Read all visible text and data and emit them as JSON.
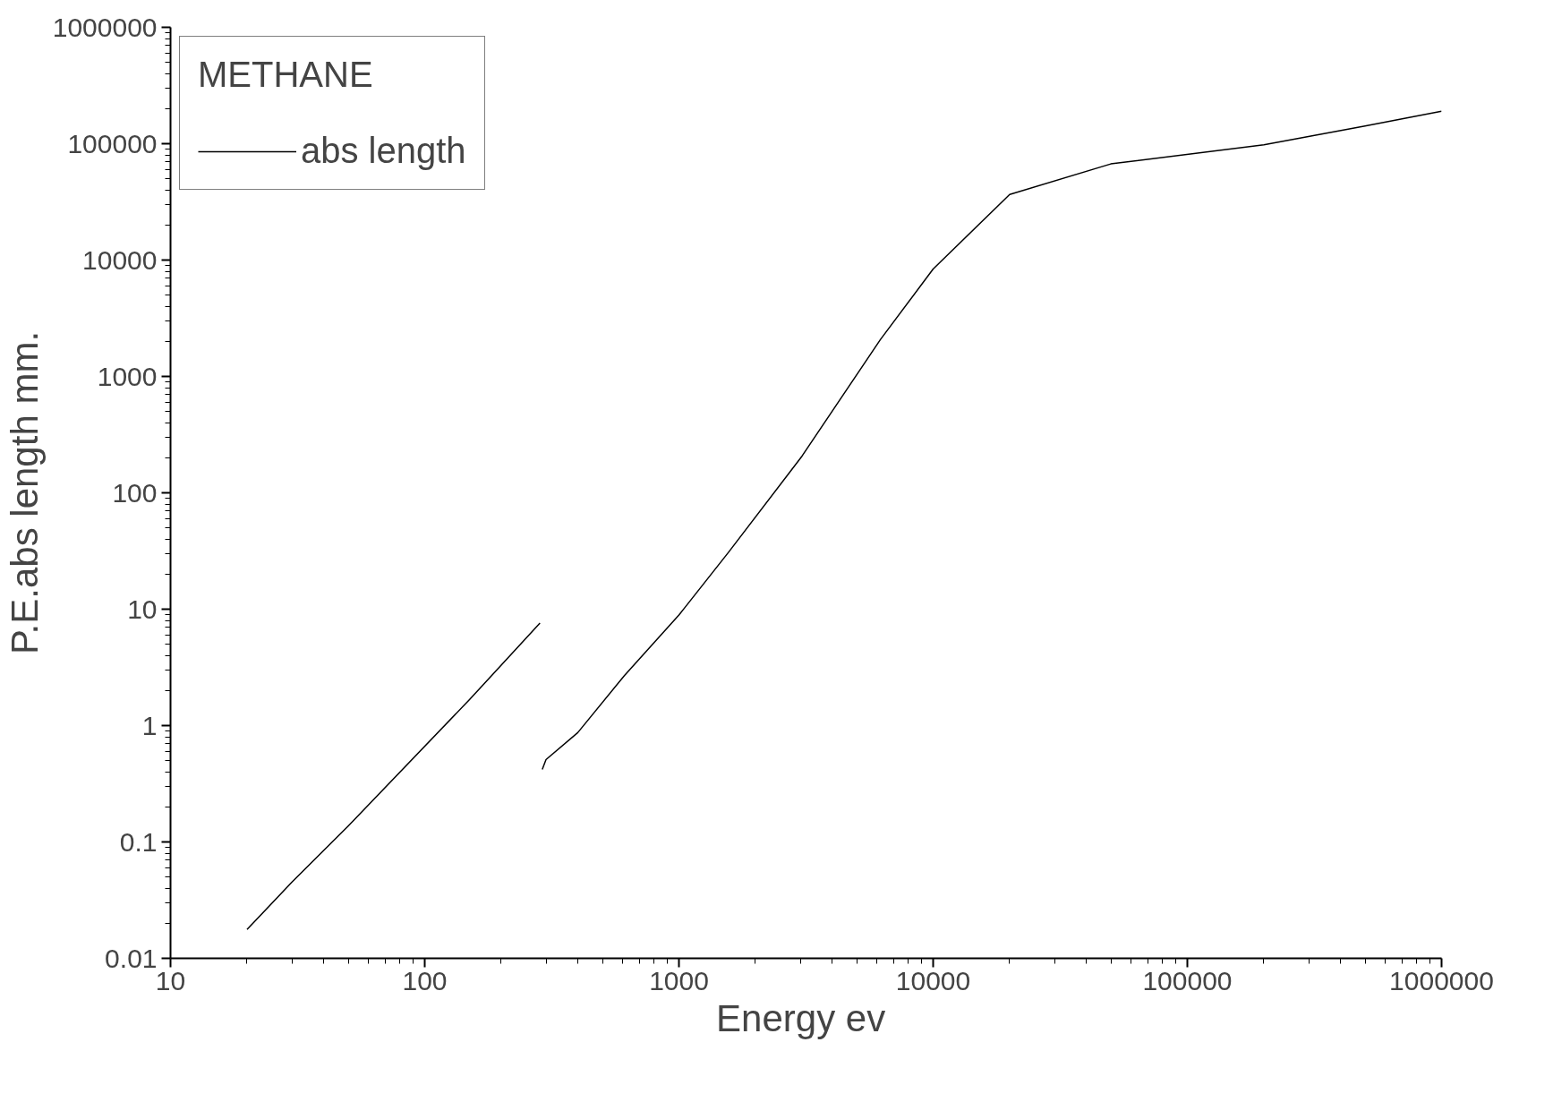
{
  "chart_data": {
    "type": "line",
    "xlabel": "Energy  ev",
    "ylabel": "P.E.abs length mm.",
    "legend_title": "METHANE",
    "log": "xy",
    "grid": false,
    "legend": "top left",
    "line_style": "solid",
    "marker": "none",
    "x": [
      20,
      30,
      50,
      150,
      284,
      287,
      290,
      300,
      400,
      611,
      1000,
      1570,
      3050,
      6200,
      10000,
      20000,
      50000,
      200000,
      500000,
      1000000
    ],
    "series": [
      {
        "name": "abs length",
        "color": "#000000",
        "values": [
          0.0177,
          0.045,
          0.137,
          1.67,
          7.6,
          null,
          0.42,
          0.51,
          0.87,
          2.7,
          8.9,
          31,
          207,
          2070,
          8380,
          36600,
          67000,
          98000,
          142000,
          190000
        ]
      }
    ],
    "xlim": [
      10,
      1000000
    ],
    "ylim": [
      0.01,
      1000000
    ],
    "xticks": [
      10,
      100,
      1000,
      10000,
      100000,
      1000000
    ],
    "yticks": [
      0.01,
      0.1,
      1,
      10,
      100,
      1000,
      10000,
      100000,
      1000000
    ]
  }
}
